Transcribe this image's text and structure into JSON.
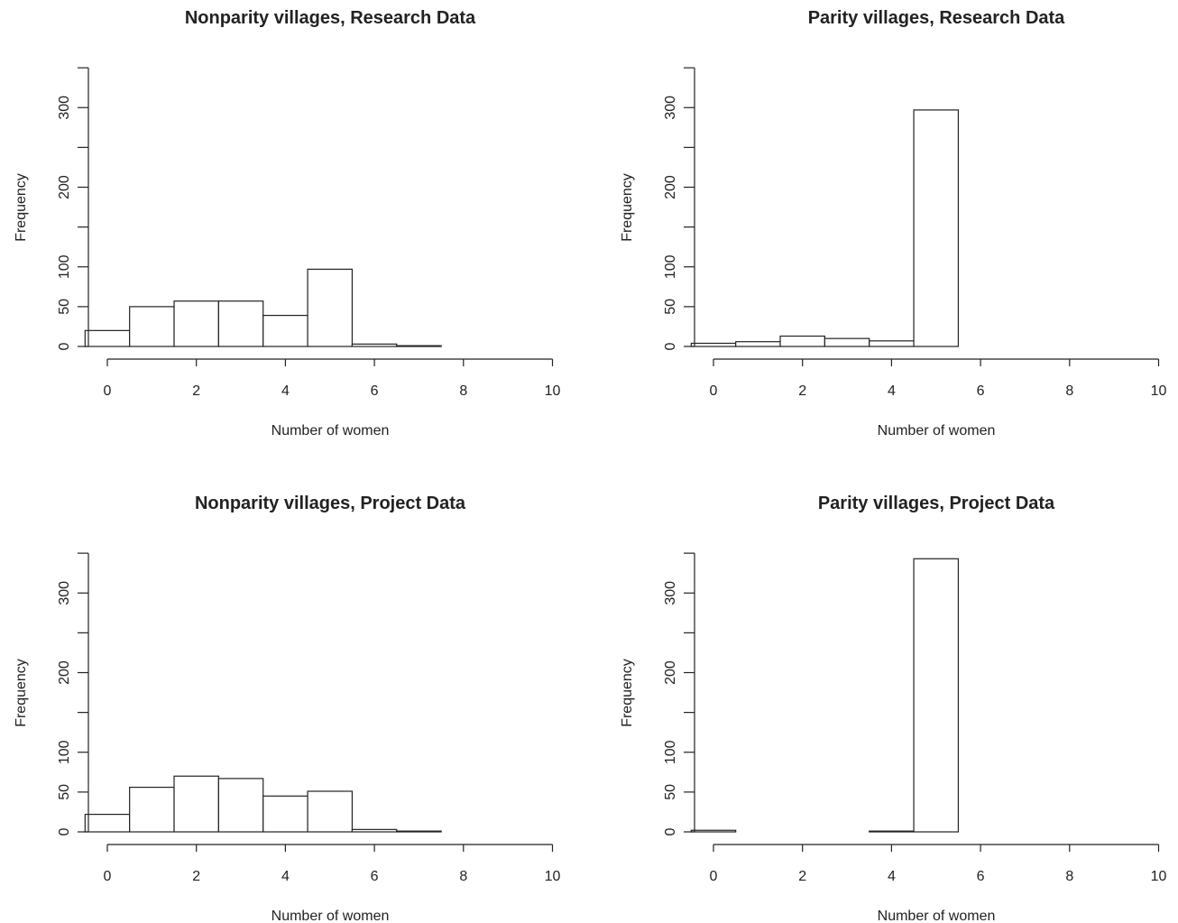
{
  "chart_data": [
    {
      "type": "bar",
      "title": "Nonparity villages, Research Data",
      "xlabel": "Number of women",
      "ylabel": "Frequency",
      "bins": [
        [
          -0.5,
          0.5
        ],
        [
          0.5,
          1.5
        ],
        [
          1.5,
          2.5
        ],
        [
          2.5,
          3.5
        ],
        [
          3.5,
          4.5
        ],
        [
          4.5,
          5.5
        ],
        [
          5.5,
          6.5
        ],
        [
          6.5,
          7.5
        ],
        [
          7.5,
          8.5
        ],
        [
          8.5,
          9.5
        ]
      ],
      "values": [
        20,
        50,
        57,
        57,
        39,
        97,
        3,
        1,
        0,
        0
      ],
      "xlim": [
        -0.5,
        10
      ],
      "ylim": [
        0,
        350
      ],
      "x_ticks": [
        "0",
        "2",
        "4",
        "6",
        "8",
        "10"
      ],
      "y_ticks": [
        "0",
        "50",
        "100",
        "200",
        "300"
      ],
      "grid": false
    },
    {
      "type": "bar",
      "title": "Parity villages, Research Data",
      "xlabel": "Number of women",
      "ylabel": "Frequency",
      "bins": [
        [
          -0.5,
          0.5
        ],
        [
          0.5,
          1.5
        ],
        [
          1.5,
          2.5
        ],
        [
          2.5,
          3.5
        ],
        [
          3.5,
          4.5
        ],
        [
          4.5,
          5.5
        ],
        [
          5.5,
          6.5
        ],
        [
          6.5,
          7.5
        ],
        [
          7.5,
          8.5
        ],
        [
          8.5,
          9.5
        ]
      ],
      "values": [
        4,
        6,
        13,
        10,
        7,
        297,
        0,
        0,
        0,
        0
      ],
      "xlim": [
        -0.5,
        10
      ],
      "ylim": [
        0,
        350
      ],
      "x_ticks": [
        "0",
        "2",
        "4",
        "6",
        "8",
        "10"
      ],
      "y_ticks": [
        "0",
        "50",
        "100",
        "200",
        "300"
      ],
      "grid": false
    },
    {
      "type": "bar",
      "title": "Nonparity villages, Project Data",
      "xlabel": "Number of women",
      "ylabel": "Frequency",
      "bins": [
        [
          -0.5,
          0.5
        ],
        [
          0.5,
          1.5
        ],
        [
          1.5,
          2.5
        ],
        [
          2.5,
          3.5
        ],
        [
          3.5,
          4.5
        ],
        [
          4.5,
          5.5
        ],
        [
          5.5,
          6.5
        ],
        [
          6.5,
          7.5
        ],
        [
          7.5,
          8.5
        ],
        [
          8.5,
          9.5
        ]
      ],
      "values": [
        22,
        56,
        70,
        67,
        45,
        51,
        3,
        1,
        0,
        0
      ],
      "xlim": [
        -0.5,
        10
      ],
      "ylim": [
        0,
        350
      ],
      "x_ticks": [
        "0",
        "2",
        "4",
        "6",
        "8",
        "10"
      ],
      "y_ticks": [
        "0",
        "50",
        "100",
        "200",
        "300"
      ],
      "grid": false
    },
    {
      "type": "bar",
      "title": "Parity villages, Project Data",
      "xlabel": "Number of women",
      "ylabel": "Frequency",
      "bins": [
        [
          -0.5,
          0.5
        ],
        [
          0.5,
          1.5
        ],
        [
          1.5,
          2.5
        ],
        [
          2.5,
          3.5
        ],
        [
          3.5,
          4.5
        ],
        [
          4.5,
          5.5
        ],
        [
          5.5,
          6.5
        ],
        [
          6.5,
          7.5
        ],
        [
          7.5,
          8.5
        ],
        [
          8.5,
          9.5
        ]
      ],
      "values": [
        2,
        0,
        0,
        0,
        1,
        343,
        0,
        0,
        0,
        0
      ],
      "xlim": [
        -0.5,
        10
      ],
      "ylim": [
        0,
        350
      ],
      "x_ticks": [
        "0",
        "2",
        "4",
        "6",
        "8",
        "10"
      ],
      "y_ticks": [
        "0",
        "50",
        "100",
        "200",
        "300"
      ],
      "grid": false
    }
  ]
}
